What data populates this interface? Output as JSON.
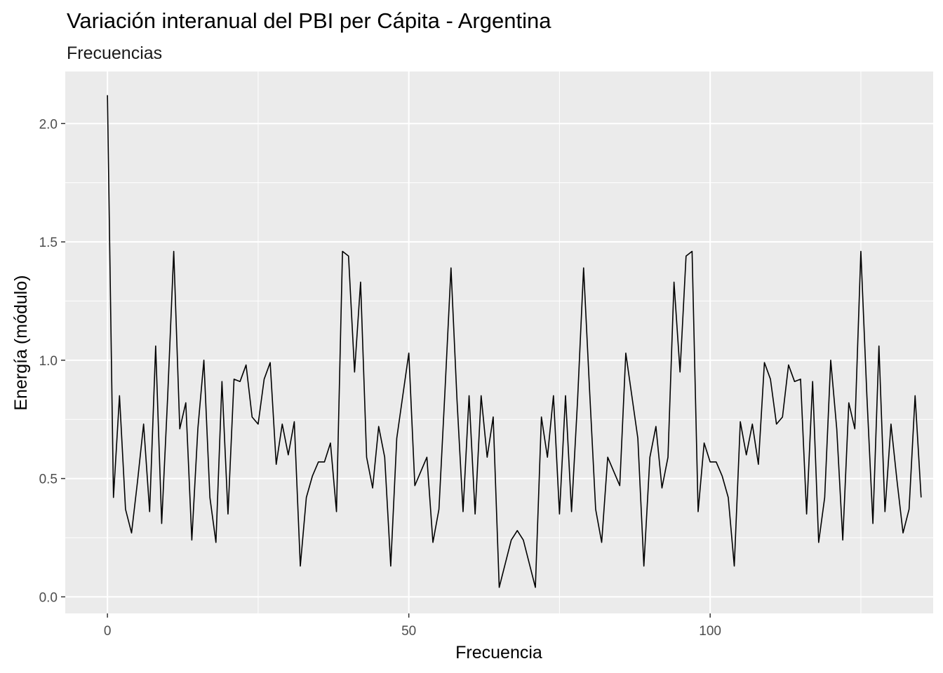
{
  "chart_data": {
    "type": "line",
    "title": "Variación interanual del PBI per Cápita - Argentina",
    "subtitle": "Frecuencias",
    "xlabel": "Frecuencia",
    "ylabel": "Energía (módulo)",
    "xlim": [
      -7,
      137
    ],
    "ylim": [
      -0.07,
      2.22
    ],
    "x_ticks": [
      0,
      50,
      100
    ],
    "x_tick_labels": [
      "0",
      "50",
      "100"
    ],
    "y_ticks": [
      0.0,
      0.5,
      1.0,
      1.5,
      2.0
    ],
    "y_tick_labels": [
      "0.0",
      "0.5",
      "1.0",
      "1.5",
      "2.0"
    ],
    "grid": true,
    "colors": {
      "panel_background": "#ebebeb",
      "grid_major": "#ffffff",
      "line": "#000000"
    },
    "series": [
      {
        "x": [
          0,
          1,
          2,
          3,
          4,
          5,
          6,
          7,
          8,
          9,
          10,
          11,
          12,
          13,
          14,
          15,
          16,
          17,
          18,
          19,
          20,
          21,
          22,
          23,
          24,
          25,
          26,
          27,
          28,
          29,
          30,
          31,
          32,
          33,
          34,
          35,
          36,
          37,
          38,
          39,
          40,
          41,
          42,
          43,
          44,
          45,
          46,
          47,
          48,
          49,
          50,
          51,
          52,
          53,
          54,
          55,
          56,
          57,
          58,
          59,
          60,
          61,
          62,
          63,
          64,
          65,
          66,
          67,
          68,
          69,
          70,
          71,
          72,
          73,
          74,
          75,
          76,
          77,
          78,
          79,
          80,
          81,
          82,
          83,
          84,
          85,
          86,
          87,
          88,
          89,
          90,
          91,
          92,
          93,
          94,
          95,
          96,
          97,
          98,
          99,
          100,
          101,
          102,
          103,
          104,
          105,
          106,
          107,
          108,
          109,
          110,
          111,
          112,
          113,
          114,
          115,
          116,
          117,
          118,
          119,
          120,
          121,
          122,
          123,
          124,
          125,
          126,
          127,
          128,
          129,
          130,
          131,
          132,
          133,
          134,
          135
        ],
        "values": [
          2.12,
          0.42,
          0.85,
          0.37,
          0.27,
          0.49,
          0.73,
          0.36,
          1.06,
          0.31,
          0.85,
          1.46,
          0.71,
          0.82,
          0.24,
          0.71,
          1.0,
          0.42,
          0.23,
          0.91,
          0.35,
          0.92,
          0.91,
          0.98,
          0.76,
          0.73,
          0.92,
          0.99,
          0.56,
          0.73,
          0.6,
          0.74,
          0.13,
          0.42,
          0.51,
          0.57,
          0.57,
          0.65,
          0.36,
          1.46,
          1.44,
          0.95,
          1.33,
          0.59,
          0.46,
          0.72,
          0.59,
          0.13,
          0.67,
          0.85,
          1.03,
          0.47,
          0.53,
          0.59,
          0.23,
          0.37,
          0.87,
          1.39,
          0.83,
          0.36,
          0.85,
          0.35,
          0.85,
          0.59,
          0.76,
          0.04,
          0.14,
          0.24,
          0.28,
          0.24,
          0.14,
          0.04,
          0.76,
          0.59,
          0.85,
          0.35,
          0.85,
          0.36,
          0.83,
          1.39,
          0.87,
          0.37,
          0.23,
          0.59,
          0.53,
          0.47,
          1.03,
          0.85,
          0.67,
          0.13,
          0.59,
          0.72,
          0.46,
          0.59,
          1.33,
          0.95,
          1.44,
          1.46,
          0.36,
          0.65,
          0.57,
          0.57,
          0.51,
          0.42,
          0.13,
          0.74,
          0.6,
          0.73,
          0.56,
          0.99,
          0.92,
          0.73,
          0.76,
          0.98,
          0.91,
          0.92,
          0.35,
          0.91,
          0.23,
          0.42,
          1.0,
          0.71,
          0.24,
          0.82,
          0.71,
          1.46,
          0.85,
          0.31,
          1.06,
          0.36,
          0.73,
          0.49,
          0.27,
          0.37,
          0.85,
          0.42
        ]
      }
    ]
  }
}
